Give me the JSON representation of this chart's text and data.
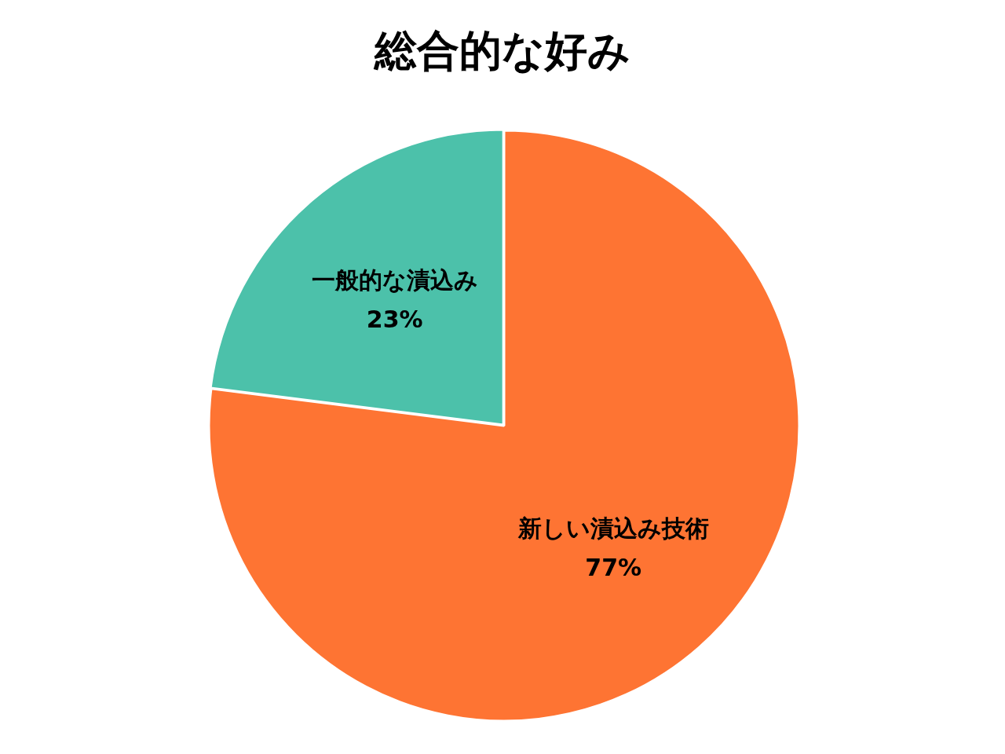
{
  "chart_data": {
    "type": "pie",
    "title": "総合的な好み",
    "categories": [
      "新しい漬込み技術",
      "一般的な漬込み"
    ],
    "values": [
      77,
      23
    ],
    "colors": [
      "#fe7433",
      "#4cc1aa"
    ],
    "value_labels": [
      "77%",
      "23%"
    ]
  }
}
